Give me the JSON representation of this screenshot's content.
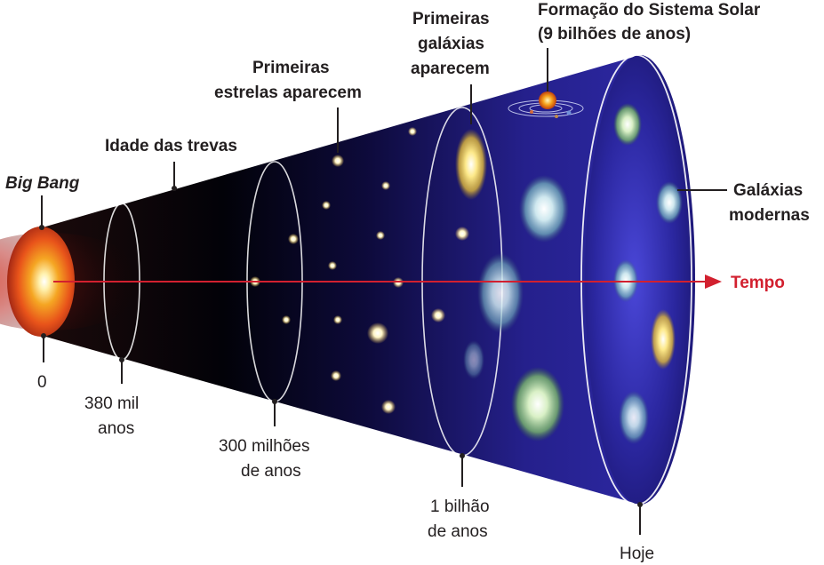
{
  "labels": {
    "big_bang": "Big Bang",
    "dark_ages": "Idade das trevas",
    "first_stars_1": "Primeiras",
    "first_stars_2": "estrelas aparecem",
    "first_galaxies_1": "Primeiras",
    "first_galaxies_2": "galáxias",
    "first_galaxies_3": "aparecem",
    "solar_system_1": "Formação do Sistema Solar",
    "solar_system_2": "(9 bilhões de anos)",
    "modern_galaxies_1": "Galáxias",
    "modern_galaxies_2": "modernas",
    "time_arrow": "Tempo"
  },
  "timeline": {
    "t0": "0",
    "t1_1": "380 mil",
    "t1_2": "anos",
    "t2_1": "300 milhões",
    "t2_2": "de anos",
    "t3_1": "1 bilhão",
    "t3_2": "de anos",
    "t4": "Hoje"
  },
  "colors": {
    "arrow": "#d2202f",
    "cone_far": "#2a1f8f",
    "cone_near": "#000000",
    "big_bang": "#f39c12"
  }
}
